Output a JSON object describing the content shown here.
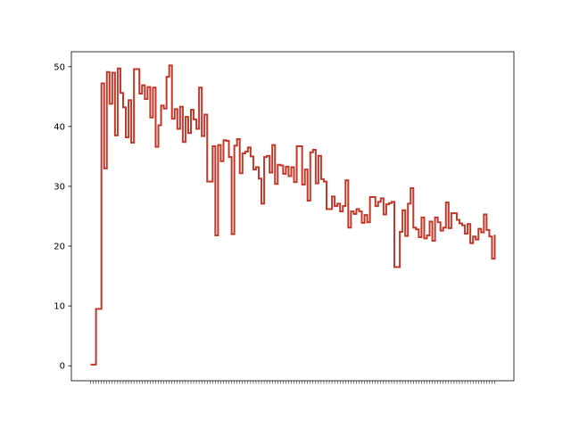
{
  "chart_data": {
    "type": "line",
    "title": "",
    "xlabel": "",
    "ylabel": "",
    "ylim": [
      -2.5,
      52.5
    ],
    "yticks": [
      0,
      10,
      20,
      30,
      40,
      50
    ],
    "grid": false,
    "legend": "none",
    "line_color": "#c0392b",
    "step": true,
    "series": [
      {
        "values": [
          0.2,
          0.2,
          9.5,
          9.5,
          47.2,
          33.0,
          49.1,
          43.8,
          49.0,
          38.5,
          49.7,
          45.6,
          43.2,
          38.2,
          44.4,
          37.3,
          49.6,
          49.6,
          45.5,
          46.9,
          44.6,
          46.6,
          41.5,
          46.5,
          36.6,
          40.2,
          43.5,
          43.0,
          48.3,
          50.2,
          41.3,
          42.9,
          39.6,
          43.3,
          37.4,
          41.6,
          38.9,
          42.8,
          41.2,
          39.6,
          46.5,
          38.4,
          42.0,
          30.8,
          30.8,
          36.7,
          21.8,
          36.9,
          34.2,
          37.7,
          37.6,
          34.9,
          22.0,
          36.8,
          37.9,
          32.2,
          35.5,
          35.8,
          36.5,
          35.0,
          32.8,
          33.2,
          31.3,
          27.1,
          34.9,
          35.1,
          32.3,
          36.9,
          30.4,
          33.6,
          33.5,
          32.1,
          33.3,
          31.7,
          33.2,
          30.7,
          36.7,
          36.7,
          30.3,
          32.8,
          27.6,
          35.7,
          36.1,
          30.5,
          35.1,
          31.2,
          30.8,
          26.2,
          26.2,
          28.3,
          26.7,
          27.1,
          25.8,
          26.7,
          31.0,
          23.1,
          25.8,
          25.4,
          26.2,
          25.8,
          23.9,
          25.2,
          24.0,
          28.2,
          28.2,
          26.7,
          27.4,
          28.0,
          25.3,
          27.0,
          27.2,
          27.4,
          16.5,
          16.5,
          22.4,
          26.0,
          21.7,
          27.1,
          29.7,
          23.1,
          22.8,
          21.5,
          24.8,
          21.3,
          21.8,
          24.1,
          20.9,
          24.8,
          24.0,
          22.6,
          23.1,
          27.3,
          23.0,
          25.5,
          25.5,
          24.4,
          23.8,
          23.5,
          22.1,
          23.7,
          20.5,
          21.6,
          21.1,
          22.9,
          22.3,
          25.3,
          22.7,
          21.6,
          17.9,
          21.9
        ]
      }
    ]
  }
}
